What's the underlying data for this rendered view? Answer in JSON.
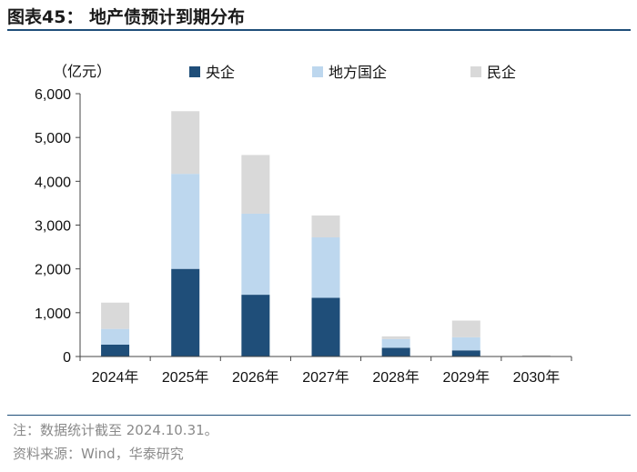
{
  "header": {
    "title": "图表45：  地产债预计到期分布"
  },
  "footer": {
    "note": "注：数据统计截至 2024.10.31。",
    "source": "资料来源：Wind，华泰研究"
  },
  "chart_data": {
    "type": "bar",
    "stacked": true,
    "unit_label": "（亿元）",
    "categories": [
      "2024年",
      "2025年",
      "2026年",
      "2027年",
      "2028年",
      "2029年",
      "2030年"
    ],
    "series": [
      {
        "name": "央企",
        "color": "#1f4e79",
        "values": [
          270,
          2000,
          1410,
          1340,
          200,
          140,
          0
        ]
      },
      {
        "name": "地方国企",
        "color": "#bdd7ee",
        "values": [
          360,
          2170,
          1850,
          1380,
          200,
          300,
          10
        ]
      },
      {
        "name": "民企",
        "color": "#d9d9d9",
        "values": [
          600,
          1430,
          1340,
          500,
          60,
          380,
          20
        ]
      }
    ],
    "ylim": [
      0,
      6000
    ],
    "yticks": [
      0,
      1000,
      2000,
      3000,
      4000,
      5000,
      6000
    ],
    "ytick_labels": [
      "0",
      "1,000",
      "2,000",
      "3,000",
      "4,000",
      "5,000",
      "6,000"
    ],
    "legend_position": "top",
    "grid": false
  }
}
